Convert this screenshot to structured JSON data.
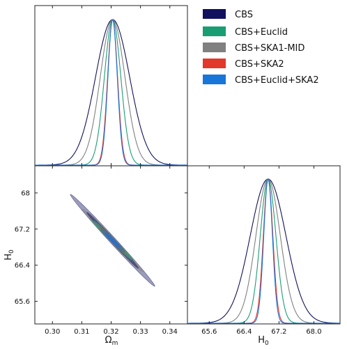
{
  "chart_data": [
    {
      "panel": "Omega_m marginal",
      "type": "line",
      "xlim": [
        0.294,
        0.346
      ],
      "xticks": [
        0.3,
        0.31,
        0.32,
        0.33,
        0.34
      ],
      "grid": false,
      "series": [
        {
          "name": "CBS",
          "color": "#11115e",
          "mean": 0.3205,
          "sigma": 0.0058
        },
        {
          "name": "CBS+Euclid",
          "color": "#1a9d72",
          "mean": 0.3205,
          "sigma": 0.0028
        },
        {
          "name": "CBS+SKA1-MID",
          "color": "#808080",
          "mean": 0.3205,
          "sigma": 0.0042
        },
        {
          "name": "CBS+SKA2",
          "color": "#e2382b",
          "mean": 0.3205,
          "sigma": 0.0017
        },
        {
          "name": "CBS+Euclid+SKA2",
          "color": "#1876d8",
          "mean": 0.3205,
          "sigma": 0.0016
        }
      ]
    },
    {
      "panel": "H_0 marginal",
      "type": "line",
      "xlim": [
        65.1,
        68.6
      ],
      "xticks": [
        "65.6",
        "66.4",
        "67.2",
        "68.0"
      ],
      "xlabel": "H_0",
      "grid": false,
      "series": [
        {
          "name": "CBS",
          "color": "#11115e",
          "mean": 66.95,
          "sigma": 0.41
        },
        {
          "name": "CBS+Euclid",
          "color": "#1a9d72",
          "mean": 66.95,
          "sigma": 0.18
        },
        {
          "name": "CBS+SKA1-MID",
          "color": "#808080",
          "mean": 66.95,
          "sigma": 0.28
        },
        {
          "name": "CBS+SKA2",
          "color": "#e2382b",
          "mean": 66.95,
          "sigma": 0.11
        },
        {
          "name": "CBS+Euclid+SKA2",
          "color": "#1876d8",
          "mean": 66.95,
          "sigma": 0.1
        }
      ]
    },
    {
      "panel": "Omega_m vs H_0 joint contours",
      "type": "contour",
      "xlabel": "Ω_m",
      "ylabel": "H_0",
      "xlim": [
        0.294,
        0.346
      ],
      "ylim": [
        65.1,
        68.6
      ],
      "xticks": [
        0.3,
        0.31,
        0.32,
        0.33,
        0.34
      ],
      "yticks": [
        "65.6",
        "66.4",
        "67.2",
        "68"
      ],
      "center": [
        0.3205,
        66.95
      ],
      "series": [
        {
          "name": "CBS",
          "color": "#11115e",
          "sigma_x": 0.0058,
          "sigma_y": 0.41,
          "corr": -0.995
        },
        {
          "name": "CBS+SKA1-MID",
          "color": "#808080",
          "sigma_x": 0.0042,
          "sigma_y": 0.28,
          "corr": -0.993
        },
        {
          "name": "CBS+Euclid",
          "color": "#1a9d72",
          "sigma_x": 0.0028,
          "sigma_y": 0.18,
          "corr": -0.99
        },
        {
          "name": "CBS+SKA2",
          "color": "#e2382b",
          "sigma_x": 0.0017,
          "sigma_y": 0.11,
          "corr": -0.98
        },
        {
          "name": "CBS+Euclid+SKA2",
          "color": "#1876d8",
          "sigma_x": 0.0016,
          "sigma_y": 0.1,
          "corr": -0.97
        }
      ]
    }
  ],
  "legend": {
    "placement": "top-right",
    "entries": [
      {
        "label": "CBS",
        "color": "#11115e"
      },
      {
        "label": "CBS+Euclid",
        "color": "#1a9d72"
      },
      {
        "label": "CBS+SKA1-MID",
        "color": "#808080"
      },
      {
        "label": "CBS+SKA2",
        "color": "#e2382b"
      },
      {
        "label": "CBS+Euclid+SKA2",
        "color": "#1876d8"
      }
    ]
  }
}
